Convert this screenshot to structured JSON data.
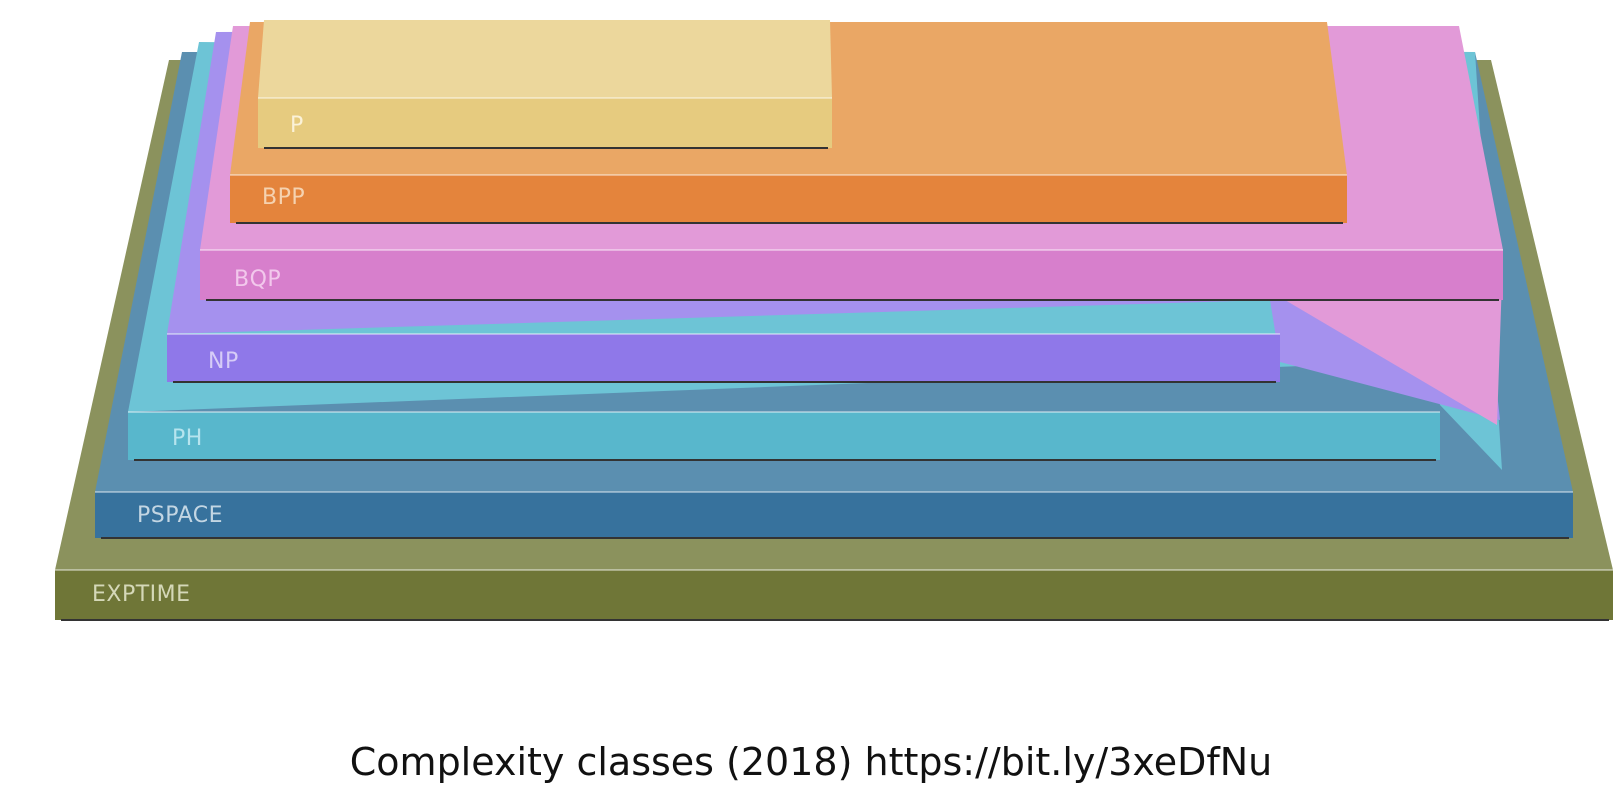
{
  "diagram": {
    "layers": [
      {
        "id": "exptime",
        "label": "EXPTIME",
        "top_color": "#8b925d",
        "front_color": "#6f7637",
        "label_color": "#d5d8b8"
      },
      {
        "id": "pspace",
        "label": "PSPACE",
        "top_color": "#5b8fb0",
        "front_color": "#37729d",
        "label_color": "#c3d6e3"
      },
      {
        "id": "ph",
        "label": "PH",
        "top_color": "#6dc4d6",
        "front_color": "#58b7cc",
        "label_color": "#b6e4ee"
      },
      {
        "id": "np",
        "label": "NP",
        "top_color": "#a591ee",
        "front_color": "#8f78e9",
        "label_color": "#d6ccf7"
      },
      {
        "id": "bqp",
        "label": "BQP",
        "top_color": "#e29ad8",
        "front_color": "#d77fcc",
        "label_color": "#f2c8ec"
      },
      {
        "id": "bpp",
        "label": "BPP",
        "top_color": "#eaa765",
        "front_color": "#e4843c",
        "label_color": "#f5d2b0"
      },
      {
        "id": "p",
        "label": "P",
        "top_color": "#ecd79c",
        "front_color": "#e6cb7f",
        "label_color": "#fbf2d8"
      }
    ]
  },
  "caption": "Complexity classes (2018) https://bit.ly/3xeDfNu"
}
